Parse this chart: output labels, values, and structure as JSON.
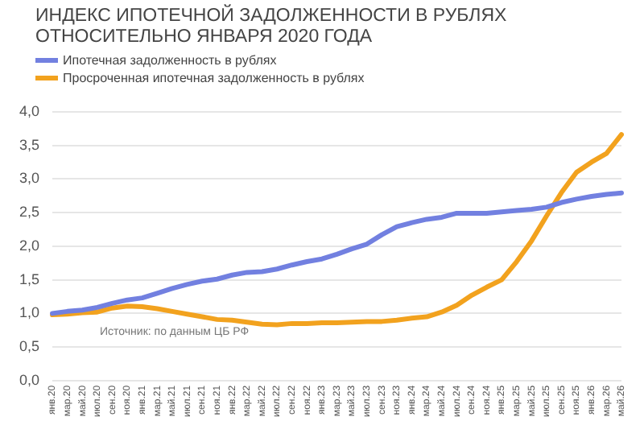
{
  "chart_data": {
    "type": "line",
    "title": "ИНДЕКС ИПОТЕЧНОЙ ЗАДОЛЖЕННОСТИ В РУБЛЯХ ОТНОСИТЕЛЬНО ЯНВАРЯ 2020 ГОДА",
    "categories": [
      "янв.20",
      "мар.20",
      "май.20",
      "июл.20",
      "сен.20",
      "ноя.20",
      "янв.21",
      "мар.21",
      "май.21",
      "июл.21",
      "сен.21",
      "ноя.21",
      "янв.22",
      "мар.22",
      "май.22",
      "июл.22",
      "сен.22",
      "ноя.22",
      "янв.23",
      "мар.23",
      "май.23",
      "июл.23",
      "сен.23",
      "ноя.23",
      "янв.24",
      "мар.24",
      "май.24",
      "июл.24",
      "сен.24",
      "ноя.24",
      "янв.25",
      "мар.25",
      "май.25",
      "июл.25",
      "сен.25",
      "ноя.25",
      "янв.26",
      "мар.26",
      "май.26"
    ],
    "series": [
      {
        "name": "Ипотечная задолженность в рублях",
        "color": "#7280e0",
        "values": [
          1.0,
          1.03,
          1.05,
          1.09,
          1.15,
          1.2,
          1.23,
          1.3,
          1.37,
          1.43,
          1.48,
          1.51,
          1.57,
          1.61,
          1.62,
          1.66,
          1.72,
          1.77,
          1.81,
          1.88,
          1.96,
          2.03,
          2.17,
          2.29,
          2.35,
          2.4,
          2.43,
          2.49,
          2.49,
          2.49,
          2.51,
          2.53,
          2.55,
          2.58,
          2.65,
          2.7,
          2.74,
          2.77,
          2.79
        ]
      },
      {
        "name": "Просроченная ипотечная задолженность в рублях",
        "color": "#f2a21e",
        "values": [
          0.98,
          0.99,
          1.01,
          1.02,
          1.08,
          1.11,
          1.1,
          1.07,
          1.03,
          0.99,
          0.95,
          0.91,
          0.9,
          0.87,
          0.84,
          0.83,
          0.85,
          0.85,
          0.86,
          0.86,
          0.87,
          0.88,
          0.88,
          0.9,
          0.93,
          0.95,
          1.02,
          1.12,
          1.27,
          1.39,
          1.5,
          1.77,
          2.08,
          2.45,
          2.8,
          3.1,
          3.25,
          3.38,
          3.66
        ]
      }
    ],
    "ylim": [
      0,
      4
    ],
    "yticks": [
      {
        "value": 0,
        "label": "0,0"
      },
      {
        "value": 0.5,
        "label": "0,5"
      },
      {
        "value": 1,
        "label": "1,0"
      },
      {
        "value": 1.5,
        "label": "1,5"
      },
      {
        "value": 2,
        "label": "2,0"
      },
      {
        "value": 2.5,
        "label": "2,5"
      },
      {
        "value": 3,
        "label": "3,0"
      },
      {
        "value": 3.5,
        "label": "3,5"
      },
      {
        "value": 4,
        "label": "4,0"
      }
    ],
    "grid": "y",
    "legend": "top left",
    "marker": "none",
    "line_style": "solid",
    "annotations": [
      "Источник: по данным ЦБ РФ"
    ]
  }
}
